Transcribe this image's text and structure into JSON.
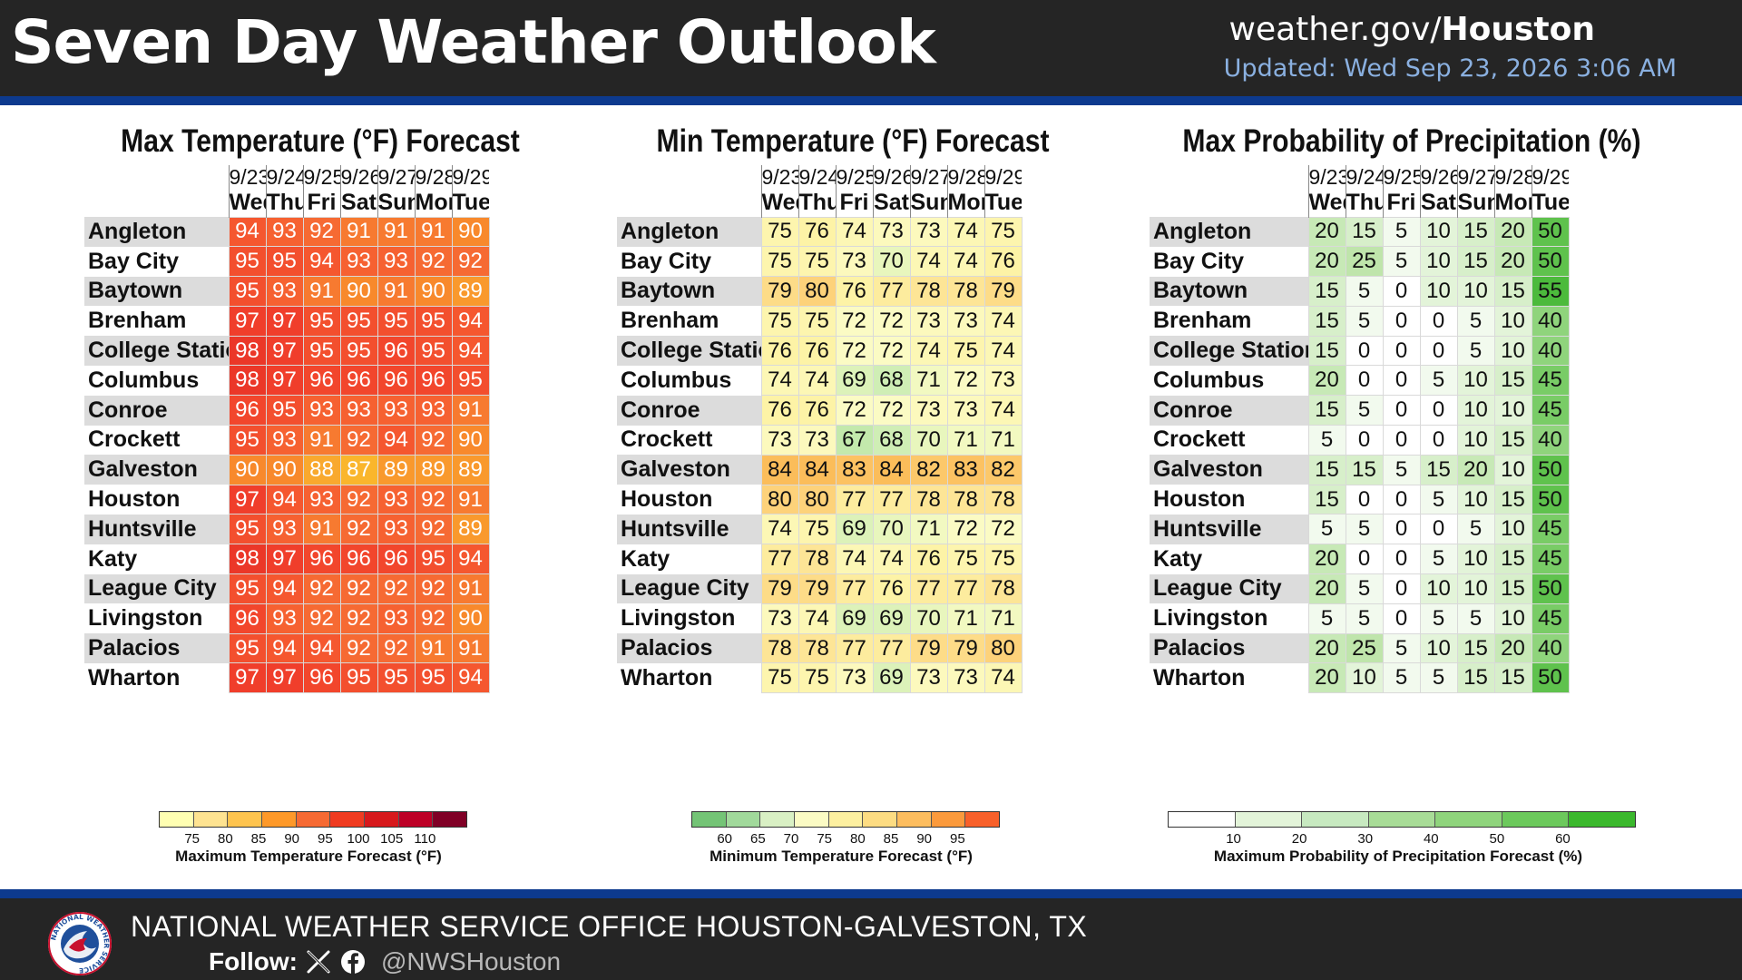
{
  "header": {
    "title": "Seven Day Weather Outlook",
    "site_prefix": "weather.gov/",
    "site_bold": "Houston",
    "updated": "Updated: Wed Sep 23, 2026 3:06 AM"
  },
  "footer": {
    "office": "NATIONAL WEATHER SERVICE OFFICE HOUSTON-GALVESTON, TX",
    "follow_label": "Follow:",
    "handle": "@NWSHouston",
    "logo_text": "NATIONAL WEATHER SERVICE"
  },
  "dates": [
    "9/23",
    "9/24",
    "9/25",
    "9/26",
    "9/27",
    "9/28",
    "9/29"
  ],
  "days": [
    "Wed",
    "Thu",
    "Fri",
    "Sat",
    "Sun",
    "Mon",
    "Tue"
  ],
  "cities": [
    "Angleton",
    "Bay City",
    "Baytown",
    "Brenham",
    "College Station",
    "Columbus",
    "Conroe",
    "Crockett",
    "Galveston",
    "Houston",
    "Huntsville",
    "Katy",
    "League City",
    "Livingston",
    "Palacios",
    "Wharton"
  ],
  "chart_data": [
    {
      "type": "table",
      "title": "Max Temperature (°F) Forecast",
      "values": [
        [
          94,
          93,
          92,
          91,
          91,
          91,
          90
        ],
        [
          95,
          95,
          94,
          93,
          93,
          92,
          92
        ],
        [
          95,
          93,
          91,
          90,
          91,
          90,
          89
        ],
        [
          97,
          97,
          95,
          95,
          95,
          95,
          94
        ],
        [
          98,
          97,
          95,
          95,
          96,
          95,
          94
        ],
        [
          98,
          97,
          96,
          96,
          96,
          96,
          95
        ],
        [
          96,
          95,
          93,
          93,
          93,
          93,
          91
        ],
        [
          95,
          93,
          91,
          92,
          94,
          92,
          90
        ],
        [
          90,
          90,
          88,
          87,
          89,
          89,
          89
        ],
        [
          97,
          94,
          93,
          92,
          93,
          92,
          91
        ],
        [
          95,
          93,
          91,
          92,
          93,
          92,
          89
        ],
        [
          98,
          97,
          96,
          96,
          96,
          95,
          94
        ],
        [
          95,
          94,
          92,
          92,
          92,
          92,
          91
        ],
        [
          96,
          93,
          92,
          92,
          93,
          92,
          90
        ],
        [
          95,
          94,
          94,
          92,
          92,
          91,
          91
        ],
        [
          97,
          97,
          96,
          95,
          95,
          95,
          94
        ]
      ],
      "legend": {
        "title": "Maximum Temperature Forecast (°F)",
        "ticks": [
          "75",
          "80",
          "85",
          "90",
          "95",
          "100",
          "105",
          "110"
        ],
        "colors": [
          "#ffffb2",
          "#fee391",
          "#fec44f",
          "#fe9929",
          "#f66a33",
          "#f03b20",
          "#d7191c",
          "#bd0026",
          "#800026"
        ]
      }
    },
    {
      "type": "table",
      "title": "Min Temperature (°F) Forecast",
      "values": [
        [
          75,
          76,
          74,
          73,
          73,
          74,
          75
        ],
        [
          75,
          75,
          73,
          70,
          74,
          74,
          76
        ],
        [
          79,
          80,
          76,
          77,
          78,
          78,
          79
        ],
        [
          75,
          75,
          72,
          72,
          73,
          73,
          74
        ],
        [
          76,
          76,
          72,
          72,
          74,
          75,
          74
        ],
        [
          74,
          74,
          69,
          68,
          71,
          72,
          73
        ],
        [
          76,
          76,
          72,
          72,
          73,
          73,
          74
        ],
        [
          73,
          73,
          67,
          68,
          70,
          71,
          71
        ],
        [
          84,
          84,
          83,
          84,
          82,
          83,
          82
        ],
        [
          80,
          80,
          77,
          77,
          78,
          78,
          78
        ],
        [
          74,
          75,
          69,
          70,
          71,
          72,
          72
        ],
        [
          77,
          78,
          74,
          74,
          76,
          75,
          75
        ],
        [
          79,
          79,
          77,
          76,
          77,
          77,
          78
        ],
        [
          73,
          74,
          69,
          69,
          70,
          71,
          71
        ],
        [
          78,
          78,
          77,
          77,
          79,
          79,
          80
        ],
        [
          75,
          75,
          73,
          69,
          73,
          73,
          74
        ]
      ],
      "legend": {
        "title": "Minimum Temperature Forecast (°F)",
        "ticks": [
          "60",
          "65",
          "70",
          "75",
          "80",
          "85",
          "90",
          "95"
        ],
        "colors": [
          "#74c476",
          "#a1d99b",
          "#d9f0c4",
          "#fbfbc4",
          "#fdf0a0",
          "#fddc82",
          "#fdbd5e",
          "#fb9a3c",
          "#f8602a"
        ]
      }
    },
    {
      "type": "table",
      "title": "Max Probability of Precipitation (%)",
      "values": [
        [
          20,
          15,
          5,
          10,
          15,
          20,
          50
        ],
        [
          20,
          25,
          5,
          10,
          15,
          20,
          50
        ],
        [
          15,
          5,
          0,
          10,
          10,
          15,
          55
        ],
        [
          15,
          5,
          0,
          0,
          5,
          10,
          40
        ],
        [
          15,
          0,
          0,
          0,
          5,
          10,
          40
        ],
        [
          20,
          0,
          0,
          5,
          10,
          15,
          45
        ],
        [
          15,
          5,
          0,
          0,
          10,
          10,
          45
        ],
        [
          5,
          0,
          0,
          0,
          10,
          15,
          40
        ],
        [
          15,
          15,
          5,
          15,
          20,
          10,
          50
        ],
        [
          15,
          0,
          0,
          5,
          10,
          15,
          50
        ],
        [
          5,
          5,
          0,
          0,
          5,
          10,
          45
        ],
        [
          20,
          0,
          0,
          5,
          10,
          15,
          45
        ],
        [
          20,
          5,
          0,
          10,
          10,
          15,
          50
        ],
        [
          5,
          5,
          0,
          5,
          5,
          10,
          45
        ],
        [
          20,
          25,
          5,
          10,
          15,
          20,
          40
        ],
        [
          20,
          10,
          5,
          5,
          15,
          15,
          50
        ]
      ],
      "legend": {
        "title": "Maximum Probability of Precipitation Forecast (%)",
        "ticks": [
          "10",
          "20",
          "30",
          "40",
          "50",
          "60"
        ],
        "colors": [
          "#ffffff",
          "#e3f4d9",
          "#c7e9c0",
          "#a8dc97",
          "#8fd47c",
          "#6cc95c",
          "#3bb82d"
        ]
      }
    }
  ]
}
